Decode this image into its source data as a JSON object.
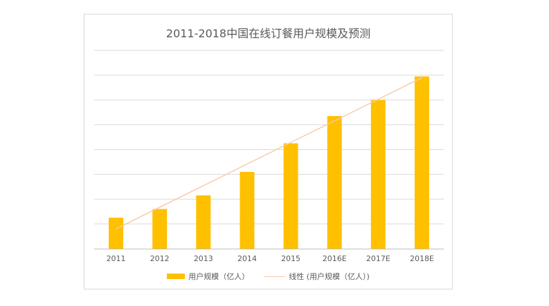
{
  "chart_data": {
    "type": "bar",
    "title": "2011-2018中国在线订餐用户规模及预测",
    "categories": [
      "2011",
      "2012",
      "2013",
      "2014",
      "2015",
      "2016E",
      "2017E",
      "2018E"
    ],
    "series": [
      {
        "name": "用户规模（亿人）",
        "type": "bar",
        "color": "#ffc000",
        "values": [
          1.25,
          1.6,
          2.15,
          3.1,
          4.25,
          5.35,
          6.0,
          6.95
        ]
      }
    ],
    "trendline": {
      "name": "线性 (用户规模（亿人）)",
      "type": "linear",
      "color": "#f8cbad",
      "start": 0.8,
      "end": 6.9
    },
    "ylim": [
      0,
      8
    ],
    "y_gridlines": [
      1,
      2,
      3,
      4,
      5,
      6,
      7,
      8
    ],
    "y_tick_labels_visible": false,
    "grid": true,
    "legend_position": "bottom"
  }
}
